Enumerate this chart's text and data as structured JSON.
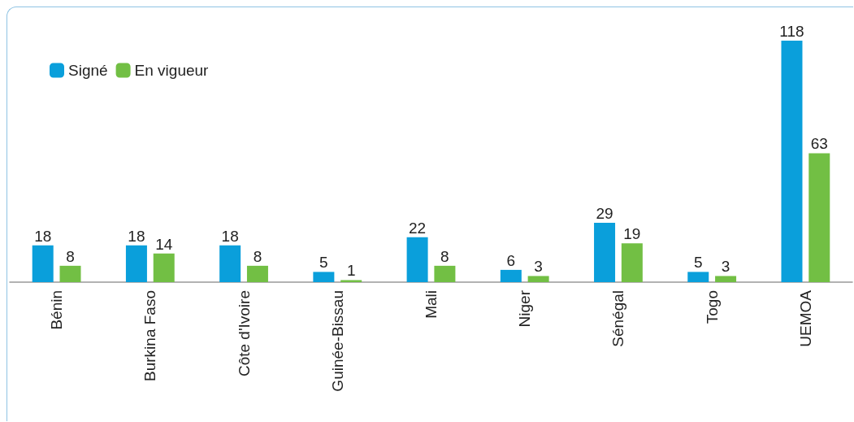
{
  "chart_data": {
    "type": "bar",
    "categories": [
      "Bénin",
      "Burkina Faso",
      "Côte d'Ivoire",
      "Guinée-Bissau",
      "Mali",
      "Niger",
      "Sénégal",
      "Togo",
      "UEMOA"
    ],
    "series": [
      {
        "name": "Signé",
        "color": "#0a9fdb",
        "values": [
          18,
          18,
          18,
          5,
          22,
          6,
          29,
          5,
          118
        ]
      },
      {
        "name": "En vigueur",
        "color": "#72bf44",
        "values": [
          8,
          14,
          8,
          1,
          8,
          3,
          19,
          3,
          63
        ]
      }
    ],
    "data_labels": true,
    "legend": "top left",
    "grid": false
  }
}
